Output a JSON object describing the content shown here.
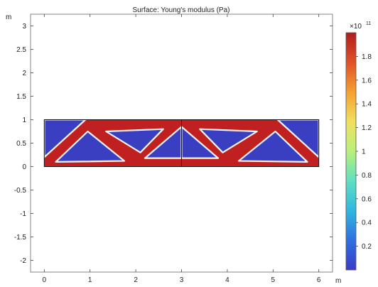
{
  "window": {
    "title": "Surface: Young's modulus (Pa)"
  },
  "chart_data": {
    "type": "heatmap",
    "title": "Surface: Young's modulus (Pa)",
    "xlabel": "m",
    "ylabel": "m",
    "xlim": [
      -0.3,
      6.3
    ],
    "ylim": [
      -2.25,
      3.25
    ],
    "xticks": [
      0,
      1,
      2,
      3,
      4,
      5,
      6
    ],
    "yticks": [
      -2,
      -1.5,
      -1,
      -0.5,
      0,
      0.5,
      1,
      1.5,
      2,
      2.5,
      3
    ],
    "xtick_labels": [
      "0",
      "1",
      "2",
      "3",
      "4",
      "5",
      "6"
    ],
    "ytick_labels": [
      "-2",
      "-1.5",
      "-1",
      "-0.5",
      "0",
      "0.5",
      "1",
      "1.5",
      "2",
      "2.5",
      "3"
    ],
    "domain": {
      "x": [
        0,
        6
      ],
      "y": [
        0,
        1
      ],
      "symmetry_line_x": 3
    },
    "solid_color": "#c0201f",
    "void_color": "#3a3ec0",
    "edge_color": "#f2f2f2",
    "holes": [
      {
        "name": "hole-left-corner",
        "points": [
          [
            0,
            0.2
          ],
          [
            0,
            1
          ],
          [
            0.9,
            1
          ]
        ]
      },
      {
        "name": "hole-left-lower",
        "points": [
          [
            0.25,
            0.1
          ],
          [
            0.95,
            0.75
          ],
          [
            1.75,
            0.12
          ]
        ]
      },
      {
        "name": "hole-left-upper",
        "points": [
          [
            1.35,
            0.75
          ],
          [
            2.6,
            0.8
          ],
          [
            2.1,
            0.3
          ]
        ]
      },
      {
        "name": "hole-center-left",
        "points": [
          [
            2.2,
            0.18
          ],
          [
            3,
            0.18
          ],
          [
            3,
            0.85
          ]
        ]
      },
      {
        "name": "hole-center-right",
        "points": [
          [
            3,
            0.85
          ],
          [
            3,
            0.18
          ],
          [
            3.8,
            0.18
          ]
        ]
      },
      {
        "name": "hole-right-upper",
        "points": [
          [
            3.4,
            0.8
          ],
          [
            4.65,
            0.75
          ],
          [
            3.9,
            0.3
          ]
        ]
      },
      {
        "name": "hole-right-lower",
        "points": [
          [
            4.25,
            0.12
          ],
          [
            5.05,
            0.75
          ],
          [
            5.75,
            0.1
          ]
        ]
      },
      {
        "name": "hole-right-corner",
        "points": [
          [
            5.1,
            1
          ],
          [
            6,
            1
          ],
          [
            6,
            0.2
          ]
        ]
      }
    ],
    "colorbar": {
      "min": 0,
      "max": 2.0,
      "exponent_label": "×10",
      "exponent": "11",
      "tick_values": [
        0.2,
        0.4,
        0.6,
        0.8,
        1,
        1.2,
        1.4,
        1.6,
        1.8
      ],
      "tick_labels": [
        "0.2",
        "0.4",
        "0.6",
        "0.8",
        "1",
        "1.2",
        "1.4",
        "1.6",
        "1.8"
      ],
      "colors": [
        "#3b3bc8",
        "#2f6fe0",
        "#2fb8e0",
        "#5fe0c0",
        "#b8f07a",
        "#f0e060",
        "#f5a030",
        "#e05028",
        "#b01e1e"
      ]
    }
  }
}
